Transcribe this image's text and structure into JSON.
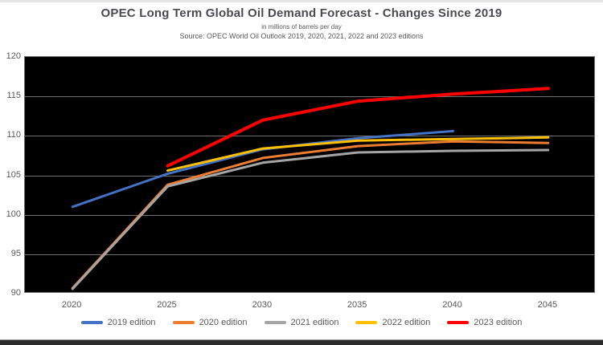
{
  "header": {
    "title": "OPEC Long Term Global Oil Demand Forecast - Changes Since 2019",
    "subtitle": "in millions of barrels per day",
    "source": "Source: OPEC World Oil Outlook 2019, 2020, 2021, 2022 and 2023 editions"
  },
  "colors": {
    "title_text": "#4a4a52",
    "caption_text": "#595959",
    "axis_text": "#595959",
    "plot_background": "#000000",
    "gridline": "#707070",
    "top_strip": "#e4e4e4",
    "footer_bar": "#2b2b2b"
  },
  "chart_data": {
    "type": "line",
    "title": "OPEC Long Term Global Oil Demand Forecast - Changes Since 2019",
    "subtitle": "in millions of barrels per day",
    "source": "Source: OPEC World Oil Outlook 2019, 2020, 2021, 2022 and 2023 editions",
    "xlabel": "",
    "ylabel": "",
    "units": "millions of barrels per day",
    "categories": [
      "2020",
      "2025",
      "2030",
      "2035",
      "2040",
      "2045"
    ],
    "series": [
      {
        "name": "2019 edition",
        "color": "#4472C4",
        "stroke_width": 3,
        "values": [
          101.0,
          105.2,
          108.3,
          109.7,
          110.6,
          null
        ]
      },
      {
        "name": "2020 edition",
        "color": "#ED7D31",
        "stroke_width": 3,
        "values": [
          90.7,
          103.8,
          107.2,
          108.7,
          109.3,
          109.1
        ]
      },
      {
        "name": "2021 edition",
        "color": "#A5A5A5",
        "stroke_width": 3,
        "values": [
          90.6,
          103.6,
          106.6,
          107.9,
          108.1,
          108.2
        ]
      },
      {
        "name": "2022 edition",
        "color": "#FFC000",
        "stroke_width": 3,
        "values": [
          null,
          105.6,
          108.4,
          109.4,
          109.6,
          109.8
        ]
      },
      {
        "name": "2023 edition",
        "color": "#FF0000",
        "stroke_width": 4,
        "values": [
          null,
          106.2,
          112.0,
          114.4,
          115.3,
          116.0
        ]
      }
    ],
    "ylim": [
      90,
      120
    ],
    "yticks": [
      90,
      95,
      100,
      105,
      110,
      115,
      120
    ],
    "grid": true,
    "plot_background": "black",
    "legend_position": "bottom"
  }
}
